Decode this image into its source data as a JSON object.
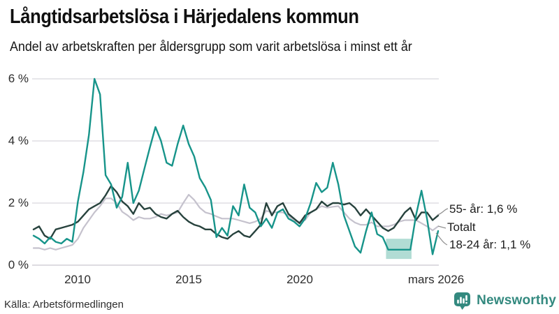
{
  "title": "Långtidsarbetslösa i Härjedalens kommun",
  "subtitle": "Andel av arbetskraften per åldersgrupp som varit arbetslösa i minst ett år",
  "source": "Källa: Arbetsförmedlingen",
  "brand": {
    "name": "Newsworthy",
    "color": "#33897f",
    "icon": "newsworthy-bar-chart-bubble-icon"
  },
  "colors": {
    "grid": "#dfdde3",
    "axis_zero_line": "#d3d1d7",
    "series_18_24": "#17948a",
    "series_55": "#27423d",
    "series_total": "#c5c2cd",
    "uncertainty_band": "#a9d8cf",
    "connector": "#8f8f8f"
  },
  "chart_data": {
    "type": "line",
    "title": "Långtidsarbetslösa i Härjedalens kommun",
    "subtitle": "Andel av arbetskraften per åldersgrupp som varit arbetslösa i minst ett år",
    "xlabel": "",
    "ylabel": "Andel av arbetskraften (%)",
    "xlim": [
      2008,
      2026.25
    ],
    "ylim": [
      0,
      6.4
    ],
    "grid": "horizontal",
    "legend_position": "end-of-line-labels",
    "yticks": [
      {
        "value": 0,
        "label": "0 %"
      },
      {
        "value": 2,
        "label": "2 %"
      },
      {
        "value": 4,
        "label": "4 %"
      },
      {
        "value": 6,
        "label": "6 %"
      }
    ],
    "xticks": [
      {
        "value": 2010,
        "label": "2010"
      },
      {
        "value": 2015,
        "label": "2015"
      },
      {
        "value": 2020,
        "label": "2020"
      },
      {
        "value": 2026.17,
        "label": "mars 2026"
      }
    ],
    "x": [
      2008,
      2008.25,
      2008.5,
      2008.75,
      2009,
      2009.25,
      2009.5,
      2009.75,
      2010,
      2010.25,
      2010.5,
      2010.75,
      2011,
      2011.25,
      2011.5,
      2011.75,
      2012,
      2012.25,
      2012.5,
      2012.75,
      2013,
      2013.25,
      2013.5,
      2013.75,
      2014,
      2014.25,
      2014.5,
      2014.75,
      2015,
      2015.25,
      2015.5,
      2015.75,
      2016,
      2016.25,
      2016.5,
      2016.75,
      2017,
      2017.25,
      2017.5,
      2017.75,
      2018,
      2018.25,
      2018.5,
      2018.75,
      2019,
      2019.25,
      2019.5,
      2019.75,
      2020,
      2020.25,
      2020.5,
      2020.75,
      2021,
      2021.25,
      2021.5,
      2021.75,
      2022,
      2022.25,
      2022.5,
      2022.75,
      2023,
      2023.25,
      2023.5,
      2023.75,
      2024,
      2024.25,
      2024.5,
      2024.75,
      2025,
      2025.25,
      2025.5,
      2025.75,
      2026,
      2026.25
    ],
    "series": [
      {
        "name": "Totalt",
        "annotation": "Totalt",
        "last_value": "1,25 %",
        "color": "#c5c2cd",
        "values": [
          0.55,
          0.55,
          0.5,
          0.55,
          0.5,
          0.55,
          0.6,
          0.65,
          0.85,
          1.2,
          1.45,
          1.7,
          1.9,
          2.15,
          2.15,
          2.0,
          1.72,
          1.6,
          1.45,
          1.55,
          1.5,
          1.5,
          1.55,
          1.65,
          1.6,
          1.65,
          1.7,
          2.0,
          2.27,
          2.1,
          1.85,
          1.7,
          1.65,
          1.57,
          1.5,
          1.5,
          1.5,
          1.45,
          1.4,
          1.35,
          1.4,
          1.5,
          1.75,
          1.7,
          1.7,
          1.7,
          1.6,
          1.42,
          1.4,
          1.45,
          1.7,
          1.8,
          1.9,
          1.85,
          1.88,
          1.9,
          1.7,
          1.5,
          1.37,
          1.3,
          1.3,
          1.38,
          1.25,
          1.25,
          1.25,
          1.3,
          1.4,
          1.45,
          1.45,
          1.45,
          1.35,
          1.25,
          1.12,
          1.25
        ]
      },
      {
        "name": "55- år",
        "annotation": "55- år: 1,6 %",
        "last_value": "1,6 %",
        "color": "#27423d",
        "values": [
          1.15,
          1.25,
          0.95,
          0.85,
          1.15,
          1.2,
          1.25,
          1.3,
          1.4,
          1.6,
          1.8,
          1.9,
          2.0,
          2.25,
          2.55,
          2.35,
          2.05,
          1.9,
          1.65,
          2.0,
          1.8,
          1.85,
          1.65,
          1.55,
          1.5,
          1.65,
          1.75,
          1.55,
          1.4,
          1.3,
          1.25,
          1.15,
          1.15,
          1.0,
          0.9,
          0.85,
          1.0,
          1.1,
          0.95,
          0.9,
          1.1,
          1.3,
          2.0,
          1.6,
          1.9,
          2.0,
          1.65,
          1.5,
          1.35,
          1.6,
          1.7,
          1.8,
          2.05,
          1.9,
          2.0,
          2.0,
          1.95,
          2.0,
          1.85,
          1.6,
          1.8,
          1.6,
          1.4,
          1.2,
          1.1,
          1.2,
          1.45,
          1.7,
          1.85,
          1.45,
          1.7,
          1.7,
          1.45,
          1.6
        ]
      },
      {
        "name": "18-24 år",
        "annotation": "18-24 år: 1,1 %",
        "last_value": "1,1 %",
        "color": "#17948a",
        "values": [
          0.95,
          0.85,
          0.7,
          0.9,
          0.75,
          0.7,
          0.85,
          0.75,
          2.05,
          3.0,
          4.2,
          6.0,
          5.5,
          2.9,
          2.6,
          1.85,
          2.2,
          3.3,
          2.0,
          2.4,
          3.1,
          3.8,
          4.45,
          4.0,
          3.3,
          3.2,
          3.9,
          4.5,
          3.9,
          3.5,
          2.8,
          2.5,
          2.1,
          0.9,
          1.2,
          0.95,
          1.9,
          1.6,
          2.6,
          1.85,
          1.7,
          1.25,
          1.5,
          1.2,
          1.7,
          1.8,
          1.5,
          1.4,
          1.25,
          1.5,
          2.0,
          2.65,
          2.35,
          2.5,
          3.3,
          2.6,
          1.6,
          1.1,
          0.6,
          0.4,
          1.1,
          1.7,
          1.0,
          0.9,
          0.5,
          0.5,
          0.5,
          0.5,
          0.5,
          1.6,
          2.4,
          1.5,
          0.35,
          1.1
        ]
      }
    ],
    "uncertainty_band": {
      "series": "18-24 år",
      "x_from": 2023.9,
      "x_to": 2025.05,
      "y_low": 0.2,
      "y_high": 0.85,
      "color": "#a9d8cf"
    }
  }
}
